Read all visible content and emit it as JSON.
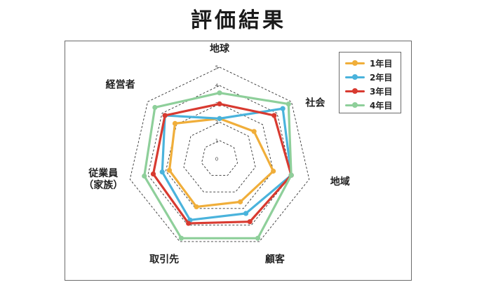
{
  "chart_data": {
    "type": "radar",
    "title": "評価結果",
    "axes": [
      "地球",
      "社会",
      "地域",
      "顧客",
      "取引先",
      "従業員\n（家族）",
      "経営者"
    ],
    "r_range": [
      0,
      5
    ],
    "ticks": [
      "0",
      "1",
      "2",
      "3",
      "4",
      "5"
    ],
    "grid": "dashed",
    "legend_position": "top-right",
    "series": [
      {
        "name": "1年目",
        "color": "#f0ae3a",
        "values": [
          2.2,
          2.4,
          3.0,
          2.6,
          2.9,
          2.8,
          3.1
        ]
      },
      {
        "name": "2年目",
        "color": "#4ab3dc",
        "values": [
          2.2,
          4.4,
          4.0,
          3.3,
          3.7,
          3.2,
          3.8
        ]
      },
      {
        "name": "3年目",
        "color": "#d83a30",
        "values": [
          3.0,
          3.8,
          4.0,
          3.8,
          3.9,
          3.7,
          3.8
        ]
      },
      {
        "name": "4年目",
        "color": "#8ecf9a",
        "values": [
          3.6,
          4.8,
          4.0,
          4.8,
          4.8,
          4.2,
          4.5
        ]
      }
    ]
  },
  "legend": {
    "items": [
      "1年目",
      "2年目",
      "3年目",
      "4年目"
    ]
  }
}
